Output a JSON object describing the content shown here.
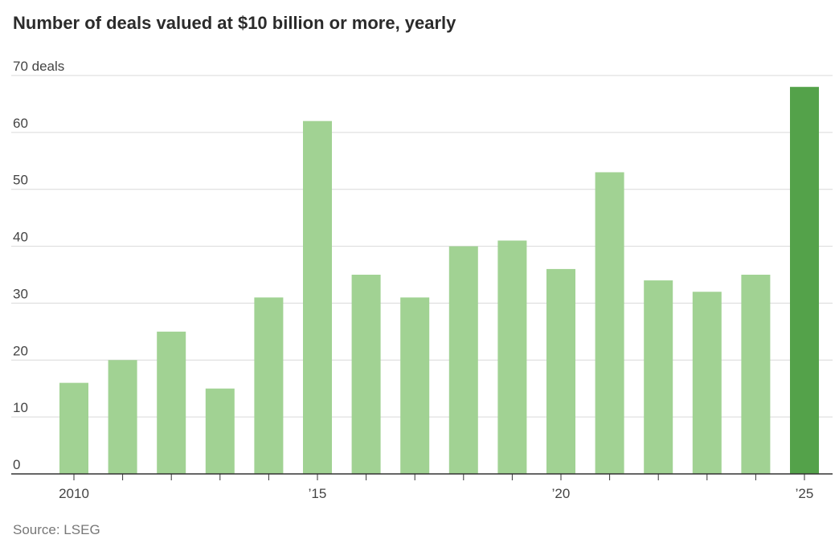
{
  "title": "Number of deals valued at $10 billion or more, yearly",
  "source": "Source: LSEG",
  "colors": {
    "bar": "#a1d293",
    "highlight": "#54a24a"
  },
  "chart_data": {
    "type": "bar",
    "title": "Number of deals valued at $10 billion or more, yearly",
    "xlabel": "",
    "ylabel": "",
    "ylim": [
      0,
      70
    ],
    "yticks": [
      0,
      10,
      20,
      30,
      40,
      50,
      60,
      70
    ],
    "ytick_labels": [
      "0",
      "10",
      "20",
      "30",
      "40",
      "50",
      "60",
      "70 deals"
    ],
    "categories": [
      "2010",
      "2011",
      "2012",
      "2013",
      "2014",
      "2015",
      "2016",
      "2017",
      "2018",
      "2019",
      "2020",
      "2021",
      "2022",
      "2023",
      "2024",
      "2025"
    ],
    "xtick_labels": [
      {
        "category": "2010",
        "label": "2010"
      },
      {
        "category": "2015",
        "label": "’15"
      },
      {
        "category": "2020",
        "label": "’20"
      },
      {
        "category": "2025",
        "label": "’25"
      }
    ],
    "values": [
      16,
      20,
      25,
      15,
      31,
      62,
      35,
      31,
      40,
      41,
      36,
      53,
      34,
      32,
      35,
      68
    ],
    "highlight_category": "2025",
    "grid": true
  }
}
